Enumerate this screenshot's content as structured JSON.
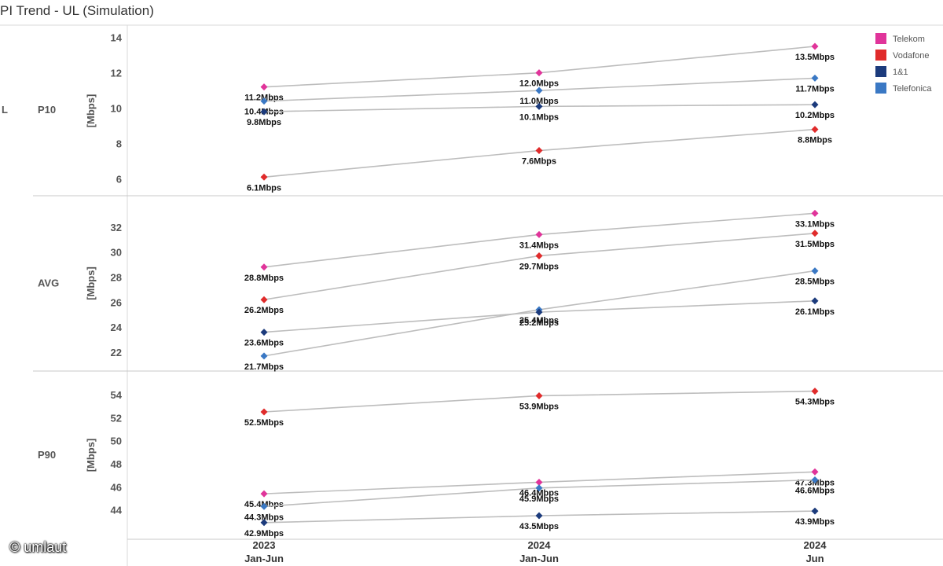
{
  "title": "PI Trend - UL (Simulation)",
  "watermark": "© umlaut",
  "legend": [
    {
      "name": "Telekom",
      "color": "#e0349a"
    },
    {
      "name": "Vodafone",
      "color": "#e02b2b"
    },
    {
      "name": "1&1",
      "color": "#1c3b7c"
    },
    {
      "name": "Telefonica",
      "color": "#3a78c4"
    }
  ],
  "chart_data": {
    "type": "line",
    "x_categories": [
      {
        "line1": "2023",
        "line2": "Jan-Jun"
      },
      {
        "line1": "2024",
        "line2": "Jan-Jun"
      },
      {
        "line1": "2024",
        "line2": "Jun"
      }
    ],
    "panels": [
      {
        "row_label": "P10",
        "ylabel": "[Mbps]",
        "ylim": [
          5.4,
          14.3
        ],
        "yticks": [
          6,
          8,
          10,
          12,
          14
        ],
        "series": [
          {
            "name": "Telekom",
            "values": [
              11.2,
              12.0,
              13.5
            ],
            "labels": [
              "11.2Mbps",
              "12.0Mbps",
              "13.5Mbps"
            ]
          },
          {
            "name": "Telefonica",
            "values": [
              10.4,
              11.0,
              11.7
            ],
            "labels": [
              "10.4Mbps",
              "11.0Mbps",
              "11.7Mbps"
            ]
          },
          {
            "name": "1&1",
            "values": [
              9.8,
              10.1,
              10.2
            ],
            "labels": [
              "9.8Mbps",
              "10.1Mbps",
              "10.2Mbps"
            ]
          },
          {
            "name": "Vodafone",
            "values": [
              6.1,
              7.6,
              8.8
            ],
            "labels": [
              "6.1Mbps",
              "7.6Mbps",
              "8.8Mbps"
            ]
          }
        ]
      },
      {
        "row_label": "AVG",
        "ylabel": "[Mbps]",
        "ylim": [
          21.0,
          34.0
        ],
        "yticks": [
          22,
          24,
          26,
          28,
          30,
          32
        ],
        "series": [
          {
            "name": "Telekom",
            "values": [
              28.8,
              31.4,
              33.1
            ],
            "labels": [
              "28.8Mbps",
              "31.4Mbps",
              "33.1Mbps"
            ]
          },
          {
            "name": "Vodafone",
            "values": [
              26.2,
              29.7,
              31.5
            ],
            "labels": [
              "26.2Mbps",
              "29.7Mbps",
              "31.5Mbps"
            ]
          },
          {
            "name": "Telefonica",
            "values": [
              21.7,
              25.4,
              28.5
            ],
            "labels": [
              "21.7Mbps",
              "25.4Mbps",
              "28.5Mbps"
            ]
          },
          {
            "name": "1&1",
            "values": [
              23.6,
              25.2,
              26.1
            ],
            "labels": [
              "23.6Mbps",
              "25.2Mbps",
              "26.1Mbps"
            ]
          }
        ]
      },
      {
        "row_label": "P90",
        "ylabel": "[Mbps]",
        "ylim": [
          42.0,
          55.5
        ],
        "yticks": [
          44,
          46,
          48,
          50,
          52,
          54
        ],
        "series": [
          {
            "name": "Vodafone",
            "values": [
              52.5,
              53.9,
              54.3
            ],
            "labels": [
              "52.5Mbps",
              "53.9Mbps",
              "54.3Mbps"
            ]
          },
          {
            "name": "Telekom",
            "values": [
              45.4,
              46.4,
              47.3
            ],
            "labels": [
              "45.4Mbps",
              "46.4Mbps",
              "47.3Mbps"
            ]
          },
          {
            "name": "Telefonica",
            "values": [
              44.3,
              45.9,
              46.6
            ],
            "labels": [
              "44.3Mbps",
              "45.9Mbps",
              "46.6Mbps"
            ]
          },
          {
            "name": "1&1",
            "values": [
              42.9,
              43.5,
              43.9
            ],
            "labels": [
              "42.9Mbps",
              "43.5Mbps",
              "43.9Mbps"
            ]
          }
        ]
      }
    ],
    "left_label": "L",
    "grid": false,
    "legend_position": "top-right"
  }
}
